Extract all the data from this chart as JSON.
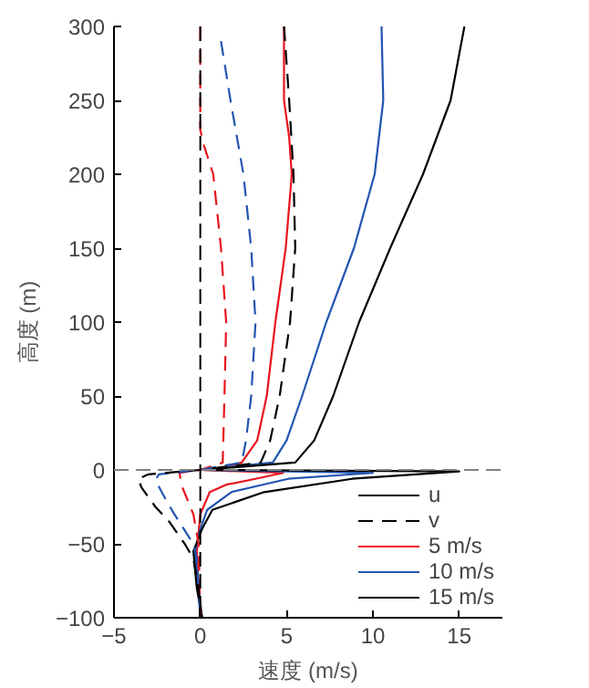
{
  "chart_data": {
    "type": "line",
    "xlabel": "速度 (m/s)",
    "ylabel": "高度 (m)",
    "xlim": [
      -5,
      17.5
    ],
    "ylim": [
      -100,
      300
    ],
    "xticks": [
      {
        "value": -5,
        "label": "−5"
      },
      0,
      5,
      10,
      15
    ],
    "yticks": [
      {
        "value": -100,
        "label": "−100"
      },
      {
        "value": -50,
        "label": "−50"
      },
      0,
      50,
      100,
      150,
      200,
      250,
      300
    ],
    "grid": false,
    "legend": "bottom right",
    "ref_lines": [
      {
        "axis": "y",
        "value": 0,
        "label": null,
        "color": "#808080",
        "line_style": "dashed"
      },
      {
        "axis": "x",
        "value": 0,
        "label": null,
        "color": "#000000",
        "line_style": "dashed"
      }
    ],
    "series": [
      {
        "name": "u",
        "color": "#000000",
        "line_style": "solid",
        "x": [
          null
        ],
        "values": [
          null
        ]
      },
      {
        "name": "v",
        "color": "#000000",
        "line_style": "dashed",
        "x": [
          null
        ],
        "values": [
          null
        ]
      },
      {
        "name": "5 m/s",
        "color": "#e8141c",
        "line_style": "solid",
        "x": [
          4.85,
          4.85,
          5.15,
          5.3,
          4.95,
          4.35,
          3.85,
          3.3,
          2.4,
          1.5,
          0,
          4.8,
          3.2,
          1.5,
          0.55,
          0.0,
          -0.2,
          -0.1,
          0.1
        ],
        "values": [
          300,
          250,
          225,
          200,
          150,
          100,
          50,
          20,
          5,
          2,
          0,
          -2,
          -6,
          -10,
          -15,
          -30,
          -55,
          -80,
          -100
        ]
      },
      {
        "name": "10 m/s",
        "color": "#2255b0",
        "line_style": "solid",
        "x": [
          10.5,
          10.6,
          10.1,
          8.9,
          7.3,
          5.9,
          5.0,
          4.2,
          0,
          10,
          5.1,
          1.8,
          0.4,
          0.0,
          -0.3,
          -0.1,
          0.1
        ],
        "values": [
          300,
          250,
          200,
          150,
          100,
          50,
          20,
          5,
          0,
          -2,
          -6,
          -15,
          -27,
          -40,
          -55,
          -80,
          -100
        ]
      },
      {
        "name": "15 m/s",
        "color": "#000000",
        "line_style": "solid",
        "x": [
          15.3,
          14.5,
          12.9,
          11.0,
          9.2,
          7.7,
          6.6,
          5.5,
          0,
          15,
          8.8,
          3.7,
          0.7,
          0.1,
          -0.4,
          -0.2,
          0.1
        ],
        "values": [
          300,
          250,
          200,
          150,
          100,
          50,
          20,
          5,
          0,
          -1,
          -6,
          -15,
          -27,
          -40,
          -55,
          -80,
          -100
        ]
      },
      {
        "name": null,
        "color": "#e8141c",
        "line_style": "dashed",
        "x": [
          0,
          0,
          0.2,
          0.75,
          1.2,
          1.5,
          1.4,
          1.3,
          0,
          -1.2,
          -1.1,
          -0.75,
          -0.4,
          -0.1,
          0
        ],
        "values": [
          300,
          230,
          220,
          200,
          150,
          100,
          50,
          5,
          0,
          -2,
          -10,
          -20,
          -30,
          -50,
          -100
        ]
      },
      {
        "name": null,
        "color": "#2255b0",
        "line_style": "dashed",
        "x": [
          1.2,
          1.75,
          2.5,
          2.95,
          3.2,
          2.95,
          2.65,
          2.4,
          0,
          -2.4,
          -2.6,
          -2.0,
          -1.5,
          -0.4,
          -0.2,
          0
        ],
        "values": [
          290,
          250,
          200,
          150,
          100,
          50,
          20,
          5,
          0,
          -3,
          -7,
          -20,
          -30,
          -50,
          -60,
          -100
        ]
      },
      {
        "name": null,
        "color": "#000000",
        "line_style": "dashed",
        "x": [
          4.85,
          5.15,
          5.4,
          5.5,
          5.2,
          4.6,
          4.05,
          3.5,
          0,
          -3.0,
          -3.6,
          -3.4,
          -2.6,
          -1.8,
          -0.9,
          -0.4,
          -0.1,
          0
        ],
        "values": [
          300,
          250,
          200,
          150,
          100,
          50,
          20,
          5,
          0,
          -3,
          -6,
          -12,
          -25,
          -35,
          -50,
          -60,
          -80,
          -100
        ]
      }
    ]
  }
}
